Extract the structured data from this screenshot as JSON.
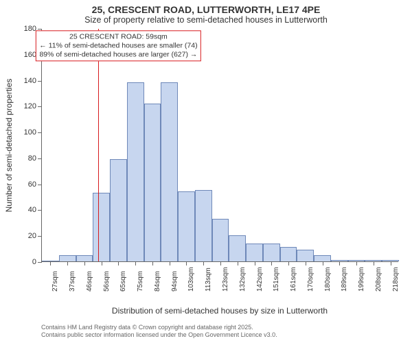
{
  "title": "25, CRESCENT ROAD, LUTTERWORTH, LE17 4PE",
  "subtitle": "Size of property relative to semi-detached houses in Lutterworth",
  "ylabel": "Number of semi-detached properties",
  "xlabel": "Distribution of semi-detached houses by size in Lutterworth",
  "footer_line1": "Contains HM Land Registry data © Crown copyright and database right 2025.",
  "footer_line2": "Contains public sector information licensed under the Open Government Licence v3.0.",
  "chart": {
    "type": "histogram",
    "ylim": [
      0,
      180
    ],
    "ytick_step": 20,
    "x_categories": [
      "27sqm",
      "37sqm",
      "46sqm",
      "56sqm",
      "65sqm",
      "75sqm",
      "84sqm",
      "94sqm",
      "103sqm",
      "113sqm",
      "123sqm",
      "132sqm",
      "142sqm",
      "151sqm",
      "161sqm",
      "170sqm",
      "180sqm",
      "189sqm",
      "199sqm",
      "208sqm",
      "218sqm"
    ],
    "values": [
      0,
      5,
      5,
      53,
      79,
      138,
      122,
      138,
      54,
      55,
      33,
      20,
      14,
      14,
      11,
      9,
      5,
      1,
      1,
      1,
      1
    ],
    "bar_fill": "#c7d6ef",
    "bar_stroke": "#6e88b8",
    "background_color": "#ffffff",
    "axis_color": "#666666",
    "label_color": "#333333",
    "label_fontsize": 12,
    "tick_fontsize": 11,
    "reference_line": {
      "x_index": 3.3,
      "color": "#d7191c",
      "width": 1
    },
    "annotation": {
      "line1": "25 CRESCENT ROAD: 59sqm",
      "line2": "← 11% of semi-detached houses are smaller (74)",
      "line3": "89% of semi-detached houses are larger (627) →",
      "border_color": "#d7191c",
      "background_color": "#ffffff",
      "x_index": 4.5,
      "y_value": 167
    }
  }
}
